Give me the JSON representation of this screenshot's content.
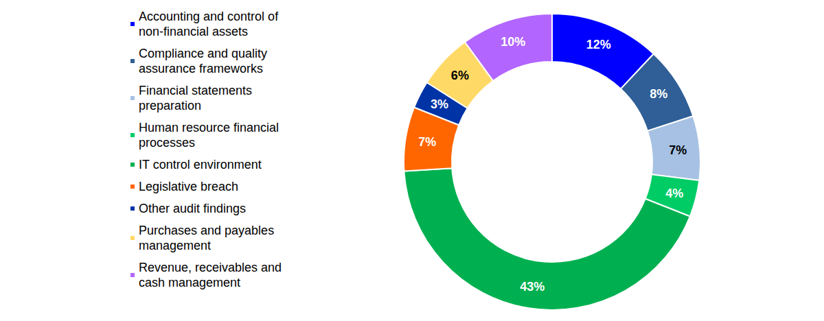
{
  "chart_data": {
    "type": "pie",
    "categories": [
      "Accounting and control of non-financial assets",
      "Compliance and quality assurance frameworks",
      "Financial statements preparation",
      "Human resource financial processes",
      "IT control environment",
      "Legislative breach",
      "Other audit findings",
      "Purchases and payables management",
      "Revenue, receivables and cash management"
    ],
    "values": [
      12,
      8,
      7,
      4,
      43,
      7,
      3,
      6,
      10
    ],
    "value_labels": [
      "12%",
      "8%",
      "7%",
      "4%",
      "43%",
      "7%",
      "3%",
      "6%",
      "10%"
    ],
    "colors": [
      "#0000ff",
      "#2f5f96",
      "#a6c1e3",
      "#00cc66",
      "#00b050",
      "#ff6600",
      "#0033a6",
      "#ffd966",
      "#b266ff"
    ],
    "data_labels": true,
    "legend": "left"
  }
}
